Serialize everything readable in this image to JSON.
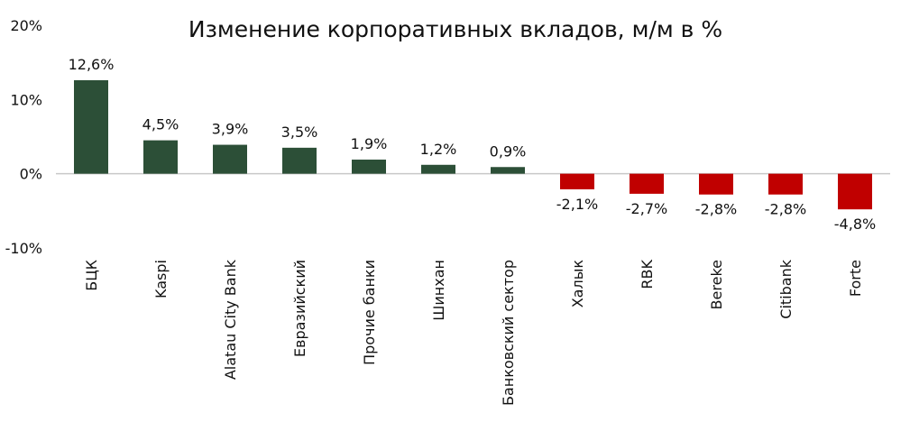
{
  "chart_data": {
    "type": "bar",
    "title": "Изменение корпоративных вкладов, м/м в %",
    "xlabel": "",
    "ylabel": "",
    "ylim": [
      -10,
      20
    ],
    "yticks": [
      20,
      10,
      0,
      -10
    ],
    "ytick_labels": [
      "20%",
      "10%",
      "0%",
      "-10%"
    ],
    "grid": false,
    "categories": [
      "БЦК",
      "Kaspi",
      "Alatau City Bank",
      "Евразийский",
      "Прочие банки",
      "Шинхан",
      "Банковский сектор",
      "Халык",
      "RBK",
      "Bereke",
      "Citibank",
      "Forte"
    ],
    "values": [
      12.6,
      4.5,
      3.9,
      3.5,
      1.9,
      1.2,
      0.9,
      -2.1,
      -2.7,
      -2.8,
      -2.8,
      -4.8
    ],
    "data_labels": [
      "12,6%",
      "4,5%",
      "3,9%",
      "3,5%",
      "1,9%",
      "1,2%",
      "0,9%",
      "-2,1%",
      "-2,7%",
      "-2,8%",
      "-2,8%",
      "-4,8%"
    ],
    "colors": {
      "positive": "#2c4f37",
      "negative": "#c00000",
      "axis": "#c8c8c8"
    }
  }
}
